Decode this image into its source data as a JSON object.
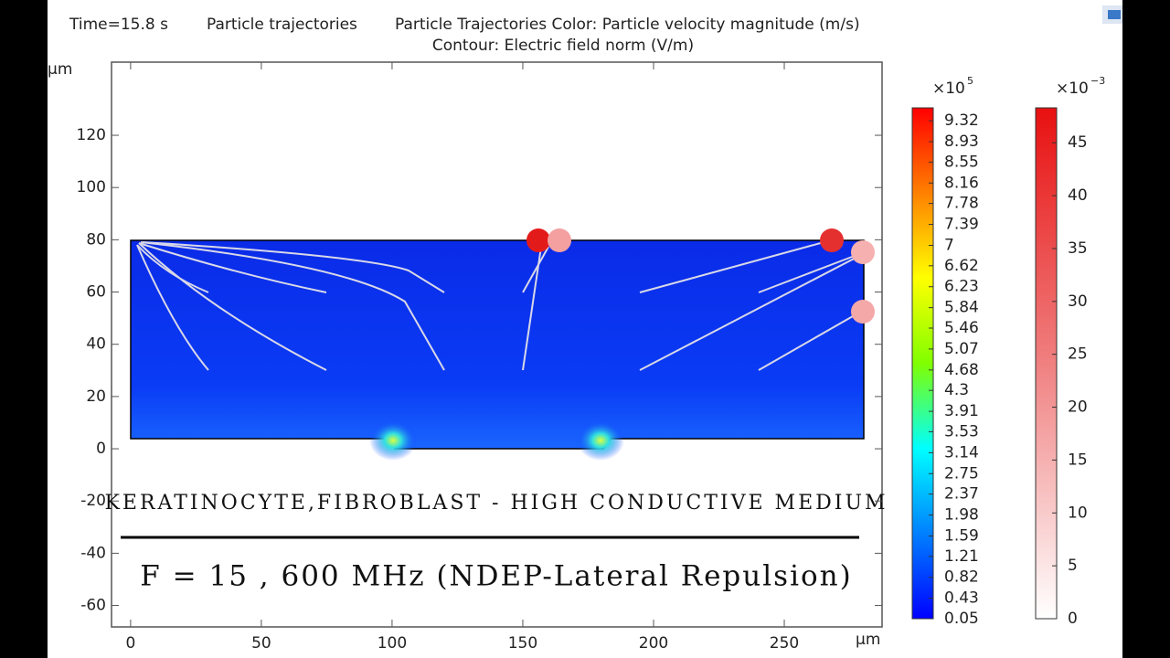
{
  "chart_data": {
    "type": "contour",
    "title_parts": [
      "Time=15.8 s",
      "Particle trajectories",
      "Particle Trajectories Color: Particle velocity magnitude (m/s)"
    ],
    "subtitle": "Contour: Electric field norm (V/m)",
    "x_unit": "μm",
    "y_unit": "μm",
    "xlim": [
      -7.3,
      287.4
    ],
    "ylim": [
      -68.2,
      148
    ],
    "xticks": [
      0,
      50,
      100,
      150,
      200,
      250
    ],
    "yticks": [
      120,
      100,
      80,
      60,
      40,
      20,
      0,
      -20,
      -40,
      -60
    ],
    "colorbars": [
      {
        "scale": "×10",
        "exponent": "5",
        "colors": [
          "#0000ff",
          "#0080ff",
          "#00ffff",
          "#80ff00",
          "#ffff00",
          "#ff8000",
          "#ff0000"
        ],
        "clim": [
          0.05,
          9.56
        ],
        "ticks": [
          9.32,
          8.93,
          8.55,
          8.16,
          7.78,
          7.39,
          7,
          6.62,
          6.23,
          5.84,
          5.46,
          5.07,
          4.68,
          4.3,
          3.91,
          3.53,
          3.14,
          2.75,
          2.37,
          1.98,
          1.59,
          1.21,
          0.82,
          0.43,
          0.05
        ]
      },
      {
        "scale": "×10",
        "exponent": "−3",
        "colors": [
          "#ffffff",
          "#f08080",
          "#e81010"
        ],
        "clim": [
          0,
          48.3
        ],
        "ticks": [
          45,
          40,
          35,
          30,
          25,
          20,
          15,
          10,
          5,
          0
        ]
      }
    ],
    "annotations": [
      "KERATINOCYTE,FIBROBLAST - HIGH CONDUCTIVE MEDIUM",
      "F = 15 , 600 MHz (NDEP-Lateral Repulsion)"
    ]
  }
}
